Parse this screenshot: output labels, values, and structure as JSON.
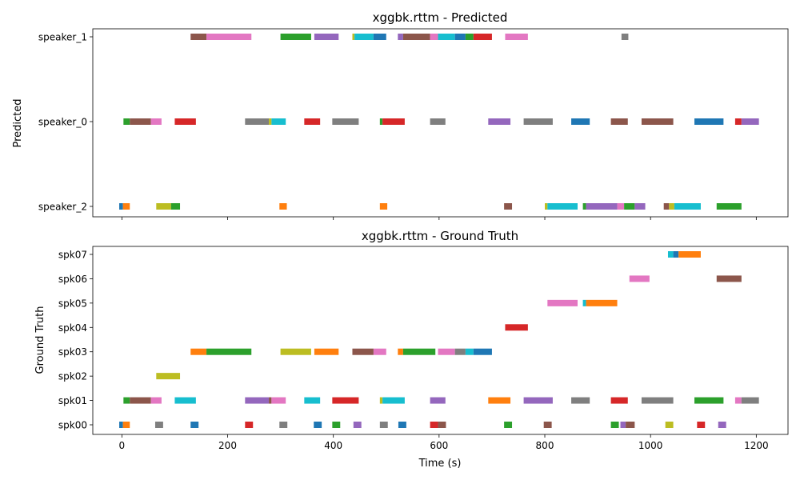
{
  "chart_data": [
    {
      "type": "timeline",
      "title": "xggbk.rttm - Predicted",
      "ylabel": "Predicted",
      "xlabel": "",
      "xlim": [
        -55,
        1260
      ],
      "x_ticks": [
        0,
        200,
        400,
        600,
        800,
        1000,
        1200
      ],
      "x_tick_labels_shown": false,
      "categories": [
        "speaker_2",
        "speaker_0",
        "speaker_1"
      ],
      "segments": [
        {
          "row": "speaker_1",
          "start": 130,
          "end": 160,
          "color": "#8c564b"
        },
        {
          "row": "speaker_1",
          "start": 160,
          "end": 245,
          "color": "#e377c2"
        },
        {
          "row": "speaker_1",
          "start": 300,
          "end": 358,
          "color": "#2ca02c"
        },
        {
          "row": "speaker_1",
          "start": 364,
          "end": 410,
          "color": "#9467bd"
        },
        {
          "row": "speaker_1",
          "start": 436,
          "end": 440,
          "color": "#bcbd22"
        },
        {
          "row": "speaker_1",
          "start": 440,
          "end": 476,
          "color": "#17becf"
        },
        {
          "row": "speaker_1",
          "start": 476,
          "end": 500,
          "color": "#1f77b4"
        },
        {
          "row": "speaker_1",
          "start": 522,
          "end": 532,
          "color": "#9467bd"
        },
        {
          "row": "speaker_1",
          "start": 532,
          "end": 583,
          "color": "#8c564b"
        },
        {
          "row": "speaker_1",
          "start": 583,
          "end": 598,
          "color": "#e377c2"
        },
        {
          "row": "speaker_1",
          "start": 598,
          "end": 630,
          "color": "#17becf"
        },
        {
          "row": "speaker_1",
          "start": 630,
          "end": 650,
          "color": "#1f77b4"
        },
        {
          "row": "speaker_1",
          "start": 650,
          "end": 665,
          "color": "#2ca02c"
        },
        {
          "row": "speaker_1",
          "start": 665,
          "end": 700,
          "color": "#d62728"
        },
        {
          "row": "speaker_1",
          "start": 725,
          "end": 768,
          "color": "#e377c2"
        },
        {
          "row": "speaker_1",
          "start": 945,
          "end": 958,
          "color": "#7f7f7f"
        },
        {
          "row": "speaker_0",
          "start": 3,
          "end": 15,
          "color": "#2ca02c"
        },
        {
          "row": "speaker_0",
          "start": 15,
          "end": 55,
          "color": "#8c564b"
        },
        {
          "row": "speaker_0",
          "start": 55,
          "end": 75,
          "color": "#e377c2"
        },
        {
          "row": "speaker_0",
          "start": 100,
          "end": 140,
          "color": "#d62728"
        },
        {
          "row": "speaker_0",
          "start": 233,
          "end": 278,
          "color": "#7f7f7f"
        },
        {
          "row": "speaker_0",
          "start": 278,
          "end": 283,
          "color": "#bcbd22"
        },
        {
          "row": "speaker_0",
          "start": 283,
          "end": 310,
          "color": "#17becf"
        },
        {
          "row": "speaker_0",
          "start": 345,
          "end": 375,
          "color": "#d62728"
        },
        {
          "row": "speaker_0",
          "start": 398,
          "end": 448,
          "color": "#7f7f7f"
        },
        {
          "row": "speaker_0",
          "start": 488,
          "end": 493,
          "color": "#2ca02c"
        },
        {
          "row": "speaker_0",
          "start": 493,
          "end": 535,
          "color": "#d62728"
        },
        {
          "row": "speaker_0",
          "start": 583,
          "end": 612,
          "color": "#7f7f7f"
        },
        {
          "row": "speaker_0",
          "start": 693,
          "end": 735,
          "color": "#9467bd"
        },
        {
          "row": "speaker_0",
          "start": 760,
          "end": 815,
          "color": "#7f7f7f"
        },
        {
          "row": "speaker_0",
          "start": 850,
          "end": 885,
          "color": "#1f77b4"
        },
        {
          "row": "speaker_0",
          "start": 925,
          "end": 957,
          "color": "#8c564b"
        },
        {
          "row": "speaker_0",
          "start": 983,
          "end": 1043,
          "color": "#8c564b"
        },
        {
          "row": "speaker_0",
          "start": 1083,
          "end": 1138,
          "color": "#1f77b4"
        },
        {
          "row": "speaker_0",
          "start": 1160,
          "end": 1172,
          "color": "#d62728"
        },
        {
          "row": "speaker_0",
          "start": 1172,
          "end": 1205,
          "color": "#9467bd"
        },
        {
          "row": "speaker_2",
          "start": -5,
          "end": 2,
          "color": "#1f77b4"
        },
        {
          "row": "speaker_2",
          "start": 2,
          "end": 15,
          "color": "#ff7f0e"
        },
        {
          "row": "speaker_2",
          "start": 65,
          "end": 93,
          "color": "#bcbd22"
        },
        {
          "row": "speaker_2",
          "start": 93,
          "end": 110,
          "color": "#2ca02c"
        },
        {
          "row": "speaker_2",
          "start": 298,
          "end": 312,
          "color": "#ff7f0e"
        },
        {
          "row": "speaker_2",
          "start": 488,
          "end": 502,
          "color": "#ff7f0e"
        },
        {
          "row": "speaker_2",
          "start": 723,
          "end": 738,
          "color": "#8c564b"
        },
        {
          "row": "speaker_2",
          "start": 800,
          "end": 805,
          "color": "#bcbd22"
        },
        {
          "row": "speaker_2",
          "start": 805,
          "end": 862,
          "color": "#17becf"
        },
        {
          "row": "speaker_2",
          "start": 872,
          "end": 878,
          "color": "#2ca02c"
        },
        {
          "row": "speaker_2",
          "start": 878,
          "end": 937,
          "color": "#9467bd"
        },
        {
          "row": "speaker_2",
          "start": 937,
          "end": 950,
          "color": "#e377c2"
        },
        {
          "row": "speaker_2",
          "start": 950,
          "end": 970,
          "color": "#2ca02c"
        },
        {
          "row": "speaker_2",
          "start": 970,
          "end": 990,
          "color": "#9467bd"
        },
        {
          "row": "speaker_2",
          "start": 1025,
          "end": 1035,
          "color": "#8c564b"
        },
        {
          "row": "speaker_2",
          "start": 1035,
          "end": 1045,
          "color": "#bcbd22"
        },
        {
          "row": "speaker_2",
          "start": 1045,
          "end": 1095,
          "color": "#17becf"
        },
        {
          "row": "speaker_2",
          "start": 1125,
          "end": 1172,
          "color": "#2ca02c"
        }
      ]
    },
    {
      "type": "timeline",
      "title": "xggbk.rttm - Ground Truth",
      "ylabel": "Ground Truth",
      "xlabel": "Time (s)",
      "xlim": [
        -55,
        1260
      ],
      "x_ticks": [
        0,
        200,
        400,
        600,
        800,
        1000,
        1200
      ],
      "x_tick_labels_shown": true,
      "categories": [
        "spk00",
        "spk01",
        "spk02",
        "spk03",
        "spk04",
        "spk05",
        "spk06",
        "spk07"
      ],
      "segments": [
        {
          "row": "spk07",
          "start": 1033,
          "end": 1043,
          "color": "#17becf"
        },
        {
          "row": "spk07",
          "start": 1043,
          "end": 1053,
          "color": "#1f77b4"
        },
        {
          "row": "spk07",
          "start": 1053,
          "end": 1095,
          "color": "#ff7f0e"
        },
        {
          "row": "spk06",
          "start": 960,
          "end": 998,
          "color": "#e377c2"
        },
        {
          "row": "spk06",
          "start": 1125,
          "end": 1172,
          "color": "#8c564b"
        },
        {
          "row": "spk05",
          "start": 805,
          "end": 862,
          "color": "#e377c2"
        },
        {
          "row": "spk05",
          "start": 872,
          "end": 878,
          "color": "#17becf"
        },
        {
          "row": "spk05",
          "start": 878,
          "end": 937,
          "color": "#ff7f0e"
        },
        {
          "row": "spk04",
          "start": 725,
          "end": 768,
          "color": "#d62728"
        },
        {
          "row": "spk03",
          "start": 130,
          "end": 160,
          "color": "#ff7f0e"
        },
        {
          "row": "spk03",
          "start": 160,
          "end": 245,
          "color": "#2ca02c"
        },
        {
          "row": "spk03",
          "start": 300,
          "end": 358,
          "color": "#bcbd22"
        },
        {
          "row": "spk03",
          "start": 364,
          "end": 410,
          "color": "#ff7f0e"
        },
        {
          "row": "spk03",
          "start": 436,
          "end": 476,
          "color": "#8c564b"
        },
        {
          "row": "spk03",
          "start": 476,
          "end": 500,
          "color": "#e377c2"
        },
        {
          "row": "spk03",
          "start": 522,
          "end": 532,
          "color": "#ff7f0e"
        },
        {
          "row": "spk03",
          "start": 532,
          "end": 593,
          "color": "#2ca02c"
        },
        {
          "row": "spk03",
          "start": 598,
          "end": 630,
          "color": "#e377c2"
        },
        {
          "row": "spk03",
          "start": 630,
          "end": 650,
          "color": "#7f7f7f"
        },
        {
          "row": "spk03",
          "start": 650,
          "end": 665,
          "color": "#17becf"
        },
        {
          "row": "spk03",
          "start": 665,
          "end": 700,
          "color": "#1f77b4"
        },
        {
          "row": "spk02",
          "start": 65,
          "end": 110,
          "color": "#bcbd22"
        },
        {
          "row": "spk01",
          "start": 3,
          "end": 15,
          "color": "#2ca02c"
        },
        {
          "row": "spk01",
          "start": 15,
          "end": 55,
          "color": "#8c564b"
        },
        {
          "row": "spk01",
          "start": 55,
          "end": 75,
          "color": "#e377c2"
        },
        {
          "row": "spk01",
          "start": 100,
          "end": 140,
          "color": "#17becf"
        },
        {
          "row": "spk01",
          "start": 233,
          "end": 278,
          "color": "#9467bd"
        },
        {
          "row": "spk01",
          "start": 278,
          "end": 283,
          "color": "#8c564b"
        },
        {
          "row": "spk01",
          "start": 283,
          "end": 310,
          "color": "#e377c2"
        },
        {
          "row": "spk01",
          "start": 345,
          "end": 375,
          "color": "#17becf"
        },
        {
          "row": "spk01",
          "start": 398,
          "end": 448,
          "color": "#d62728"
        },
        {
          "row": "spk01",
          "start": 488,
          "end": 493,
          "color": "#bcbd22"
        },
        {
          "row": "spk01",
          "start": 493,
          "end": 535,
          "color": "#17becf"
        },
        {
          "row": "spk01",
          "start": 583,
          "end": 612,
          "color": "#9467bd"
        },
        {
          "row": "spk01",
          "start": 693,
          "end": 735,
          "color": "#ff7f0e"
        },
        {
          "row": "spk01",
          "start": 760,
          "end": 815,
          "color": "#9467bd"
        },
        {
          "row": "spk01",
          "start": 850,
          "end": 885,
          "color": "#7f7f7f"
        },
        {
          "row": "spk01",
          "start": 925,
          "end": 957,
          "color": "#d62728"
        },
        {
          "row": "spk01",
          "start": 983,
          "end": 1043,
          "color": "#7f7f7f"
        },
        {
          "row": "spk01",
          "start": 1083,
          "end": 1138,
          "color": "#2ca02c"
        },
        {
          "row": "spk01",
          "start": 1160,
          "end": 1172,
          "color": "#e377c2"
        },
        {
          "row": "spk01",
          "start": 1172,
          "end": 1205,
          "color": "#7f7f7f"
        },
        {
          "row": "spk00",
          "start": -5,
          "end": 2,
          "color": "#1f77b4"
        },
        {
          "row": "spk00",
          "start": 2,
          "end": 15,
          "color": "#ff7f0e"
        },
        {
          "row": "spk00",
          "start": 63,
          "end": 78,
          "color": "#7f7f7f"
        },
        {
          "row": "spk00",
          "start": 130,
          "end": 145,
          "color": "#1f77b4"
        },
        {
          "row": "spk00",
          "start": 233,
          "end": 248,
          "color": "#d62728"
        },
        {
          "row": "spk00",
          "start": 298,
          "end": 313,
          "color": "#7f7f7f"
        },
        {
          "row": "spk00",
          "start": 363,
          "end": 378,
          "color": "#1f77b4"
        },
        {
          "row": "spk00",
          "start": 398,
          "end": 413,
          "color": "#2ca02c"
        },
        {
          "row": "spk00",
          "start": 438,
          "end": 453,
          "color": "#9467bd"
        },
        {
          "row": "spk00",
          "start": 488,
          "end": 503,
          "color": "#7f7f7f"
        },
        {
          "row": "spk00",
          "start": 523,
          "end": 538,
          "color": "#1f77b4"
        },
        {
          "row": "spk00",
          "start": 583,
          "end": 598,
          "color": "#d62728"
        },
        {
          "row": "spk00",
          "start": 598,
          "end": 613,
          "color": "#8c564b"
        },
        {
          "row": "spk00",
          "start": 723,
          "end": 738,
          "color": "#2ca02c"
        },
        {
          "row": "spk00",
          "start": 798,
          "end": 813,
          "color": "#8c564b"
        },
        {
          "row": "spk00",
          "start": 925,
          "end": 940,
          "color": "#2ca02c"
        },
        {
          "row": "spk00",
          "start": 943,
          "end": 953,
          "color": "#9467bd"
        },
        {
          "row": "spk00",
          "start": 953,
          "end": 970,
          "color": "#8c564b"
        },
        {
          "row": "spk00",
          "start": 1028,
          "end": 1043,
          "color": "#bcbd22"
        },
        {
          "row": "spk00",
          "start": 1088,
          "end": 1103,
          "color": "#d62728"
        },
        {
          "row": "spk00",
          "start": 1128,
          "end": 1143,
          "color": "#9467bd"
        }
      ]
    }
  ]
}
